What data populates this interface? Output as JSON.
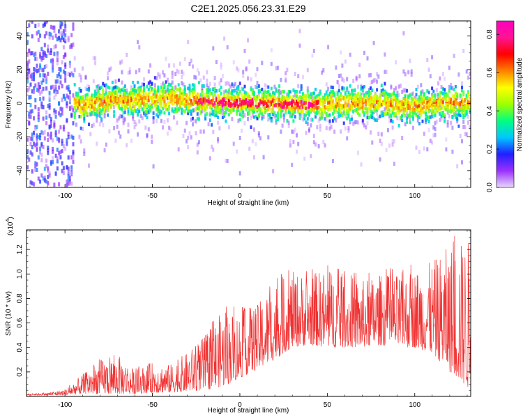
{
  "figure": {
    "title": "C2E1.2025.056.23.31.E29"
  },
  "chart_data": [
    {
      "type": "heatmap",
      "title": "C2E1.2025.056.23.31.E29",
      "xlabel": "Height of straight line (km)",
      "ylabel": "Frequency (Hz)",
      "xlim": [
        -122,
        132
      ],
      "ylim": [
        -50,
        49
      ],
      "xticks": [
        -100,
        -50,
        0,
        50,
        100
      ],
      "yticks": [
        -40,
        -20,
        0,
        20,
        40
      ],
      "colorbar": {
        "label": "Normalized spectral amplitude",
        "range": [
          0,
          0.87
        ],
        "ticks": [
          0.0,
          0.2,
          0.4,
          0.6,
          0.8
        ],
        "colormap": [
          "#e8d8ff",
          "#9b30ff",
          "#2020ff",
          "#00c8ff",
          "#00ff80",
          "#a0ff00",
          "#ffff00",
          "#ff8000",
          "#ff0000",
          "#ff1493",
          "#ff00c0"
        ]
      },
      "ridge": {
        "description_center_frequency_hz": 0,
        "center_line": [
          {
            "x": -92,
            "y": -2
          },
          {
            "x": -80,
            "y": 1
          },
          {
            "x": -60,
            "y": 2
          },
          {
            "x": -40,
            "y": 3
          },
          {
            "x": -20,
            "y": 1
          },
          {
            "x": 0,
            "y": 0
          },
          {
            "x": 20,
            "y": 0
          },
          {
            "x": 40,
            "y": -1
          },
          {
            "x": 60,
            "y": 0
          },
          {
            "x": 80,
            "y": 0
          },
          {
            "x": 100,
            "y": -2
          },
          {
            "x": 115,
            "y": 0
          },
          {
            "x": 132,
            "y": 0
          }
        ]
      }
    },
    {
      "type": "line",
      "xlabel": "Height of straight line (km)",
      "ylabel": "SNR (10 * v/v)",
      "y_multiplier": "(x10",
      "y_multiplier_exp": "4",
      "xlim": [
        -122,
        132
      ],
      "ylim": [
        0,
        1.36
      ],
      "xticks": [
        -100,
        -50,
        0,
        50,
        100
      ],
      "yticks": [
        0.2,
        0.4,
        0.6,
        0.8,
        1.0,
        1.2
      ],
      "color": "#f03232",
      "envelope": {
        "x": [
          -122,
          -110,
          -100,
          -90,
          -80,
          -70,
          -60,
          -50,
          -40,
          -30,
          -20,
          -10,
          0,
          10,
          20,
          30,
          40,
          50,
          60,
          70,
          80,
          90,
          100,
          110,
          120,
          132
        ],
        "low": [
          0.01,
          0.01,
          0.01,
          0.02,
          0.02,
          0.02,
          0.02,
          0.03,
          0.03,
          0.04,
          0.05,
          0.08,
          0.15,
          0.22,
          0.3,
          0.4,
          0.42,
          0.4,
          0.4,
          0.4,
          0.42,
          0.4,
          0.4,
          0.35,
          0.2,
          0.05
        ],
        "high": [
          0.02,
          0.03,
          0.06,
          0.18,
          0.3,
          0.34,
          0.22,
          0.28,
          0.26,
          0.36,
          0.5,
          0.7,
          0.7,
          0.75,
          0.95,
          1.02,
          1.0,
          1.05,
          1.0,
          0.95,
          1.0,
          1.0,
          1.05,
          1.1,
          1.24,
          1.3
        ]
      }
    }
  ]
}
